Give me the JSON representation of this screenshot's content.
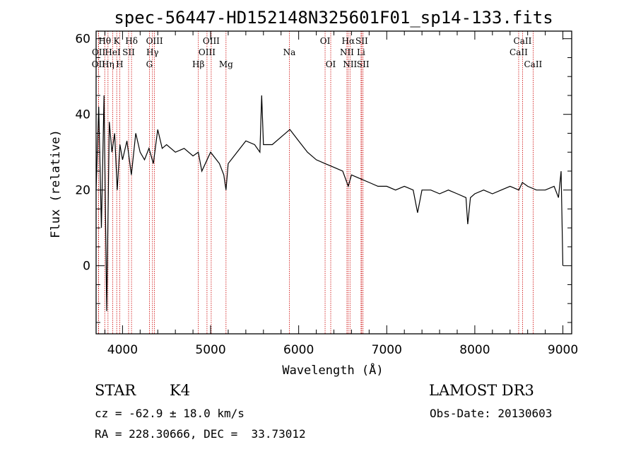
{
  "chart_data": {
    "type": "line",
    "title": "spec-56447-HD152148N325601F01_sp14-133.fits",
    "xlabel": "Wavelength (Å)",
    "ylabel": "Flux (relative)",
    "xlim": [
      3700,
      9100
    ],
    "ylim": [
      -18,
      62
    ],
    "xticks": [
      4000,
      5000,
      6000,
      7000,
      8000,
      9000
    ],
    "yticks": [
      0,
      20,
      40,
      60
    ],
    "x": [
      3700,
      3730,
      3760,
      3790,
      3820,
      3850,
      3880,
      3910,
      3940,
      3970,
      4000,
      4050,
      4100,
      4150,
      4200,
      4250,
      4300,
      4350,
      4400,
      4450,
      4500,
      4600,
      4700,
      4800,
      4860,
      4900,
      5000,
      5100,
      5150,
      5175,
      5200,
      5300,
      5400,
      5500,
      5560,
      5580,
      5600,
      5700,
      5800,
      5900,
      6000,
      6100,
      6200,
      6300,
      6400,
      6500,
      6563,
      6600,
      6700,
      6800,
      6900,
      7000,
      7100,
      7200,
      7300,
      7350,
      7400,
      7500,
      7600,
      7700,
      7800,
      7900,
      7920,
      7950,
      8000,
      8100,
      8200,
      8300,
      8400,
      8500,
      8540,
      8600,
      8700,
      8800,
      8900,
      8950,
      8980,
      9000
    ],
    "y": [
      20,
      42,
      10,
      45,
      -12,
      38,
      30,
      35,
      20,
      32,
      28,
      33,
      24,
      35,
      30,
      28,
      31,
      27,
      36,
      31,
      32,
      30,
      31,
      29,
      30,
      25,
      30,
      27,
      24,
      20,
      27,
      30,
      33,
      32,
      30,
      45,
      32,
      32,
      34,
      36,
      33,
      30,
      28,
      27,
      26,
      25,
      21,
      24,
      23,
      22,
      21,
      21,
      20,
      21,
      20,
      14,
      20,
      20,
      19,
      20,
      19,
      18,
      11,
      18,
      19,
      20,
      19,
      20,
      21,
      20,
      22,
      21,
      20,
      20,
      21,
      18,
      25,
      0
    ],
    "spectral_lines": [
      {
        "label": "OII",
        "wavelength": 3727,
        "row": 3
      },
      {
        "label": "OII",
        "wavelength": 3729,
        "row": 2
      },
      {
        "label": "Hθ",
        "wavelength": 3798,
        "row": 1
      },
      {
        "label": "Hη",
        "wavelength": 3835,
        "row": 3
      },
      {
        "label": "HeI",
        "wavelength": 3889,
        "row": 2
      },
      {
        "label": "K",
        "wavelength": 3934,
        "row": 1
      },
      {
        "label": "H",
        "wavelength": 3968,
        "row": 3
      },
      {
        "label": "SII",
        "wavelength": 4069,
        "row": 2
      },
      {
        "label": "Hδ",
        "wavelength": 4102,
        "row": 1
      },
      {
        "label": "G",
        "wavelength": 4305,
        "row": 3
      },
      {
        "label": "Hγ",
        "wavelength": 4340,
        "row": 2
      },
      {
        "label": "OIII",
        "wavelength": 4363,
        "row": 1
      },
      {
        "label": "Hβ",
        "wavelength": 4861,
        "row": 3
      },
      {
        "label": "OIII",
        "wavelength": 4959,
        "row": 2
      },
      {
        "label": "OIII",
        "wavelength": 5007,
        "row": 1
      },
      {
        "label": "Mg",
        "wavelength": 5175,
        "row": 3
      },
      {
        "label": "Na",
        "wavelength": 5894,
        "row": 2
      },
      {
        "label": "OI",
        "wavelength": 6300,
        "row": 1
      },
      {
        "label": "OI",
        "wavelength": 6364,
        "row": 3
      },
      {
        "label": "NII",
        "wavelength": 6548,
        "row": 2
      },
      {
        "label": "Hα",
        "wavelength": 6563,
        "row": 1
      },
      {
        "label": "NII",
        "wavelength": 6583,
        "row": 3
      },
      {
        "label": "Li",
        "wavelength": 6708,
        "row": 2
      },
      {
        "label": "SII",
        "wavelength": 6716,
        "row": 1
      },
      {
        "label": "SII",
        "wavelength": 6731,
        "row": 3
      },
      {
        "label": "CaII",
        "wavelength": 8498,
        "row": 2
      },
      {
        "label": "CaII",
        "wavelength": 8542,
        "row": 1
      },
      {
        "label": "CaII",
        "wavelength": 8662,
        "row": 3
      }
    ]
  },
  "info": {
    "object_class": "STAR",
    "subclass": "K4",
    "redshift_line": "cz = -62.9 ± 18.0 km/s",
    "coords_line": "RA = 228.30666, DEC =  33.73012",
    "survey": "LAMOST DR3",
    "obs_date_line": "Obs-Date: 20130603"
  },
  "colors": {
    "spectrum": "#000000",
    "line_marker": "#cc0000"
  }
}
